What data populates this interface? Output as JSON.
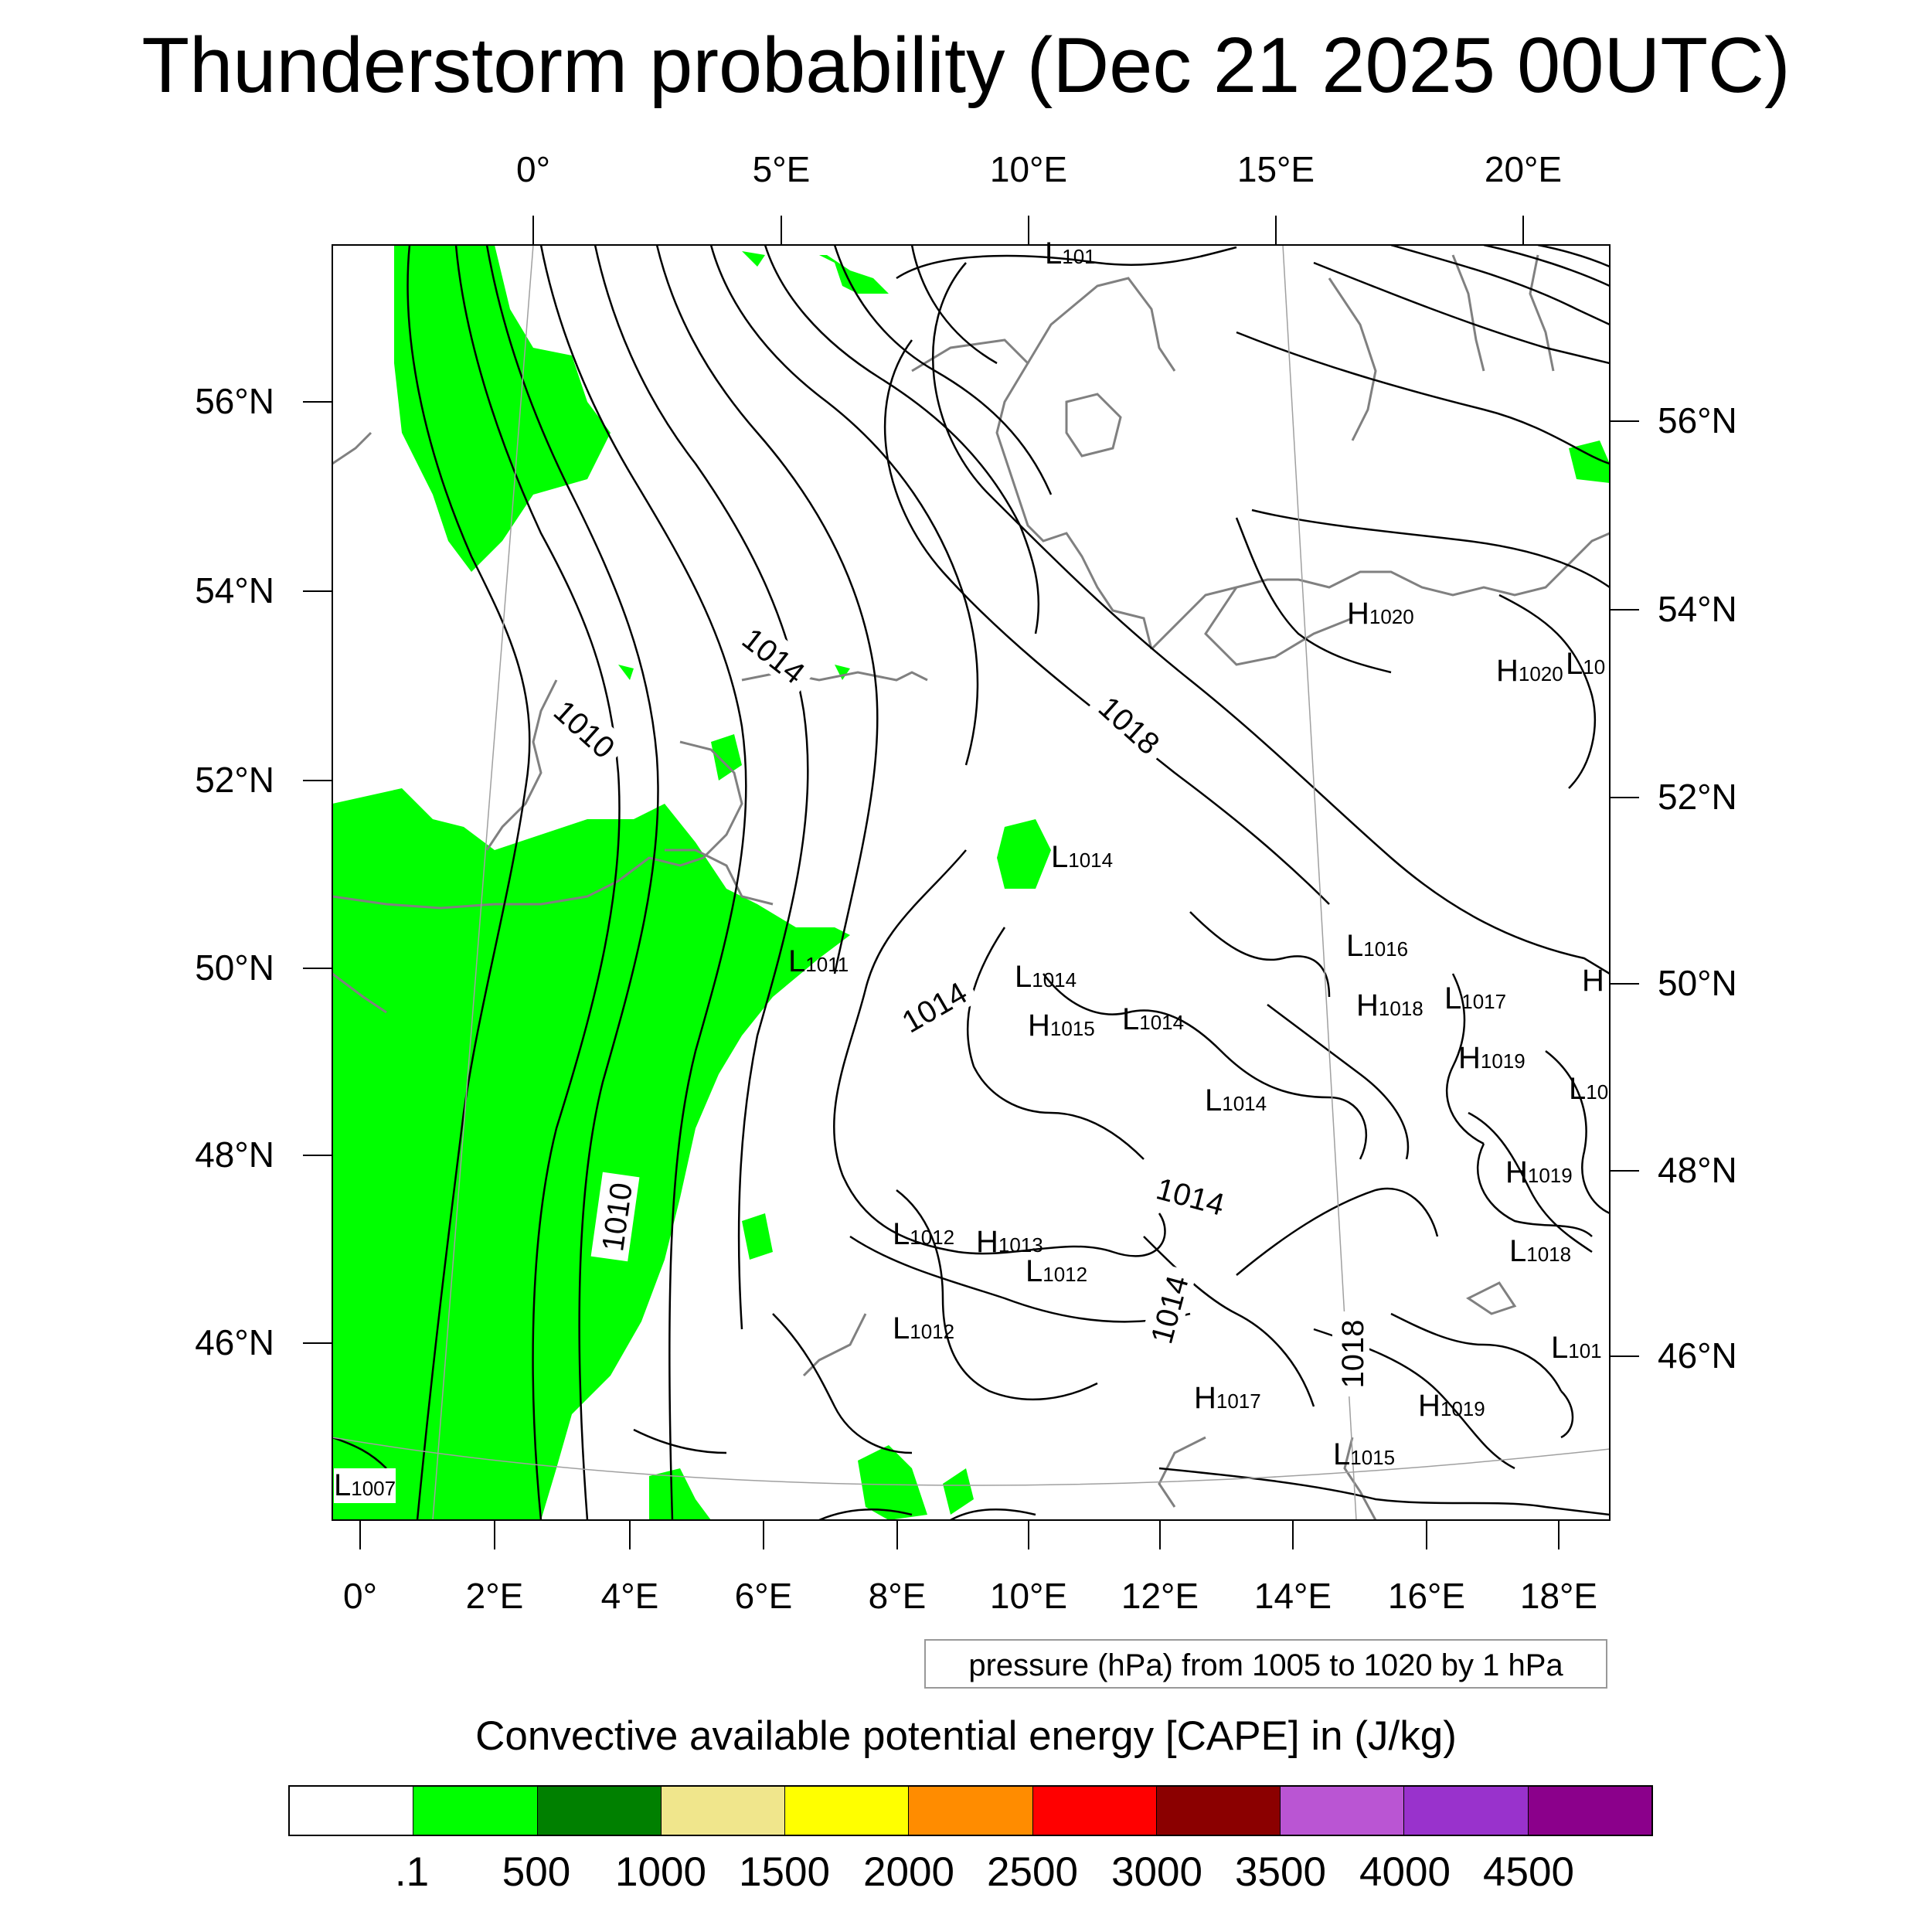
{
  "title": "Thunderstorm probability (Dec 21 2025 00UTC)",
  "top_lon_labels": [
    "0°",
    "5°E",
    "10°E",
    "15°E",
    "20°E"
  ],
  "bottom_lon_labels": [
    "0°",
    "2°E",
    "4°E",
    "6°E",
    "8°E",
    "10°E",
    "12°E",
    "14°E",
    "16°E",
    "18°E"
  ],
  "left_lat_labels": [
    "56°N",
    "54°N",
    "52°N",
    "50°N",
    "48°N",
    "46°N"
  ],
  "right_lat_labels": [
    "56°N",
    "54°N",
    "52°N",
    "50°N",
    "48°N",
    "46°N"
  ],
  "contour_labels": [
    {
      "letter": "L",
      "value": "101"
    },
    {
      "letter": "H",
      "value": "1020"
    },
    {
      "letter": "H",
      "value": "1020"
    },
    {
      "letter": "L",
      "value": "10"
    },
    {
      "letter": "L",
      "value": "1014"
    },
    {
      "letter": "L",
      "value": "1011"
    },
    {
      "letter": "L",
      "value": "1016"
    },
    {
      "letter": "L",
      "value": "1014"
    },
    {
      "letter": "H",
      "value": "1018"
    },
    {
      "letter": "L",
      "value": "1017"
    },
    {
      "letter": "H",
      "value": ""
    },
    {
      "letter": "H",
      "value": "1015"
    },
    {
      "letter": "L",
      "value": "1014"
    },
    {
      "letter": "H",
      "value": "1019"
    },
    {
      "letter": "L",
      "value": "1014"
    },
    {
      "letter": "L",
      "value": "10"
    },
    {
      "letter": "H",
      "value": "1019"
    },
    {
      "letter": "L",
      "value": "1012"
    },
    {
      "letter": "H",
      "value": "1013"
    },
    {
      "letter": "L",
      "value": "1012"
    },
    {
      "letter": "L",
      "value": "1018"
    },
    {
      "letter": "L",
      "value": "1012"
    },
    {
      "letter": "L",
      "value": "101"
    },
    {
      "letter": "H",
      "value": "1017"
    },
    {
      "letter": "H",
      "value": "1019"
    },
    {
      "letter": "L",
      "value": "1015"
    },
    {
      "letter": "L",
      "value": "1007"
    }
  ],
  "isobar_labels": [
    "1014",
    "1010",
    "1018",
    "1014",
    "1014",
    "1014",
    "1010",
    "1018"
  ],
  "pressure_note": "pressure (hPa) from 1005 to 1020 by 1 hPa",
  "colorbar": {
    "title": "Convective available potential energy [CAPE] in (J/kg)",
    "labels": [
      ".1",
      "500",
      "1000",
      "1500",
      "2000",
      "2500",
      "3000",
      "3500",
      "4000",
      "4500"
    ],
    "colors": [
      "#ffffff",
      "#00ff00",
      "#008000",
      "#f0e68c",
      "#ffff00",
      "#ff8c00",
      "#ff0000",
      "#8b0000",
      "#ba55d3",
      "#9932cc",
      "#8b008b"
    ]
  },
  "colors": {
    "cape_green": "#00ff00",
    "coast": "#808080",
    "isobar": "#000000"
  }
}
